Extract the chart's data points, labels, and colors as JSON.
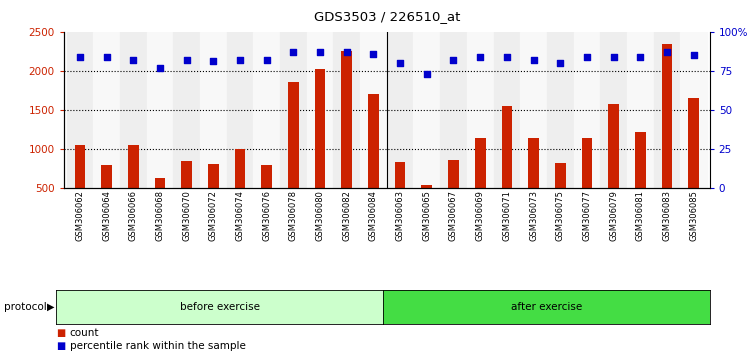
{
  "title": "GDS3503 / 226510_at",
  "categories": [
    "GSM306062",
    "GSM306064",
    "GSM306066",
    "GSM306068",
    "GSM306070",
    "GSM306072",
    "GSM306074",
    "GSM306076",
    "GSM306078",
    "GSM306080",
    "GSM306082",
    "GSM306084",
    "GSM306063",
    "GSM306065",
    "GSM306067",
    "GSM306069",
    "GSM306071",
    "GSM306073",
    "GSM306075",
    "GSM306077",
    "GSM306079",
    "GSM306081",
    "GSM306083",
    "GSM306085"
  ],
  "bar_values": [
    1050,
    790,
    1050,
    620,
    840,
    800,
    1000,
    790,
    1850,
    2020,
    2250,
    1700,
    830,
    530,
    850,
    1140,
    1550,
    1140,
    810,
    1140,
    1570,
    1220,
    2340,
    1650
  ],
  "percentile_values": [
    84,
    84,
    82,
    77,
    82,
    81,
    82,
    82,
    87,
    87,
    87,
    86,
    80,
    73,
    82,
    84,
    84,
    82,
    80,
    84,
    84,
    84,
    87,
    85
  ],
  "before_exercise_count": 12,
  "after_exercise_count": 12,
  "bar_color": "#cc2200",
  "dot_color": "#0000cc",
  "ylim_left": [
    500,
    2500
  ],
  "ylim_right": [
    0,
    100
  ],
  "yticks_left": [
    500,
    1000,
    1500,
    2000,
    2500
  ],
  "yticks_right": [
    0,
    25,
    50,
    75,
    100
  ],
  "ytick_labels_right": [
    "0",
    "25",
    "50",
    "75",
    "100%"
  ],
  "grid_dotted_at": [
    1000,
    1500,
    2000
  ],
  "before_color": "#ccffcc",
  "after_color": "#44dd44",
  "protocol_label": "protocol",
  "before_label": "before exercise",
  "after_label": "after exercise",
  "legend_count": "count",
  "legend_percentile": "percentile rank within the sample",
  "n_before": 12,
  "n_after": 12
}
